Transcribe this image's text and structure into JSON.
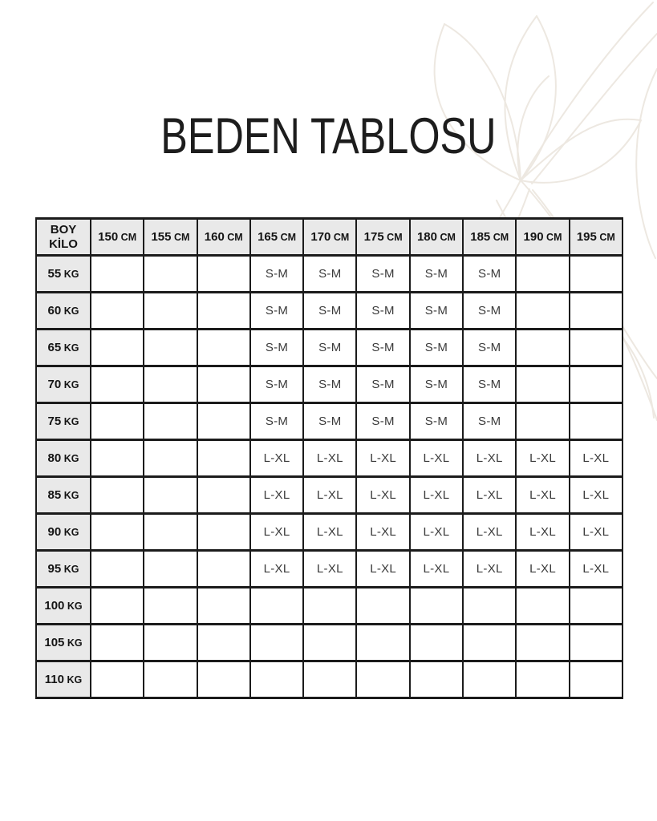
{
  "page": {
    "title": "BEDEN TABLOSU"
  },
  "colors": {
    "background": "#ffffff",
    "header_cell_bg": "#e9e9e9",
    "grid_border": "#1b1b1b",
    "title_text": "#1d1d1d",
    "cell_text": "#3a3a3a",
    "flower_stroke": "#ede8e1"
  },
  "decor": {
    "flower": "magnolia-line-art"
  },
  "table": {
    "corner": {
      "line1": "BOY",
      "line2": "KİLO"
    },
    "columns": [
      "150 CM",
      "155 CM",
      "160 CM",
      "165 CM",
      "170 CM",
      "175 CM",
      "180 CM",
      "185 CM",
      "190 CM",
      "195 CM"
    ],
    "rows": [
      {
        "label": "55 KG",
        "values": [
          "",
          "",
          "",
          "S-M",
          "S-M",
          "S-M",
          "S-M",
          "S-M",
          "",
          ""
        ]
      },
      {
        "label": "60 KG",
        "values": [
          "",
          "",
          "",
          "S-M",
          "S-M",
          "S-M",
          "S-M",
          "S-M",
          "",
          ""
        ]
      },
      {
        "label": "65 KG",
        "values": [
          "",
          "",
          "",
          "S-M",
          "S-M",
          "S-M",
          "S-M",
          "S-M",
          "",
          ""
        ]
      },
      {
        "label": "70 KG",
        "values": [
          "",
          "",
          "",
          "S-M",
          "S-M",
          "S-M",
          "S-M",
          "S-M",
          "",
          ""
        ]
      },
      {
        "label": "75 KG",
        "values": [
          "",
          "",
          "",
          "S-M",
          "S-M",
          "S-M",
          "S-M",
          "S-M",
          "",
          ""
        ]
      },
      {
        "label": "80 KG",
        "values": [
          "",
          "",
          "",
          "L-XL",
          "L-XL",
          "L-XL",
          "L-XL",
          "L-XL",
          "L-XL",
          "L-XL"
        ]
      },
      {
        "label": "85 KG",
        "values": [
          "",
          "",
          "",
          "L-XL",
          "L-XL",
          "L-XL",
          "L-XL",
          "L-XL",
          "L-XL",
          "L-XL"
        ]
      },
      {
        "label": "90 KG",
        "values": [
          "",
          "",
          "",
          "L-XL",
          "L-XL",
          "L-XL",
          "L-XL",
          "L-XL",
          "L-XL",
          "L-XL"
        ]
      },
      {
        "label": "95 KG",
        "values": [
          "",
          "",
          "",
          "L-XL",
          "L-XL",
          "L-XL",
          "L-XL",
          "L-XL",
          "L-XL",
          "L-XL"
        ]
      },
      {
        "label": "100 KG",
        "values": [
          "",
          "",
          "",
          "",
          "",
          "",
          "",
          "",
          "",
          ""
        ]
      },
      {
        "label": "105 KG",
        "values": [
          "",
          "",
          "",
          "",
          "",
          "",
          "",
          "",
          "",
          ""
        ]
      },
      {
        "label": "110 KG",
        "values": [
          "",
          "",
          "",
          "",
          "",
          "",
          "",
          "",
          "",
          ""
        ]
      }
    ]
  }
}
